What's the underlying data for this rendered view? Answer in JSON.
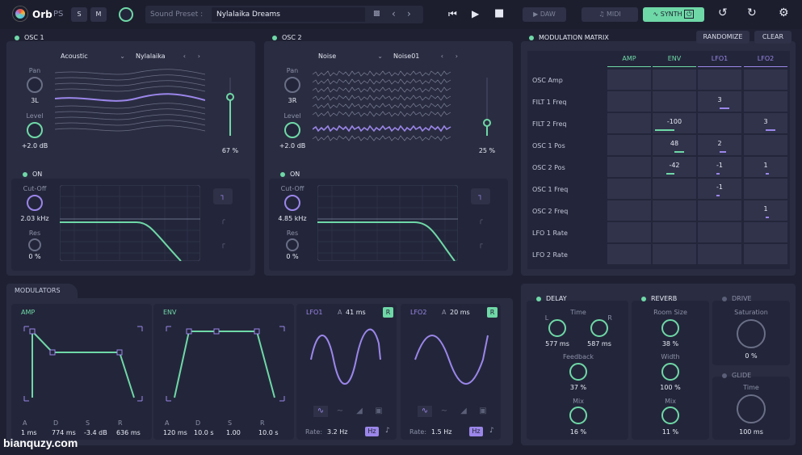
{
  "app": {
    "name": "Orb",
    "suffix": "PS",
    "s_label": "S",
    "m_label": "M"
  },
  "preset": {
    "label": "Sound Preset :",
    "name": "Nylalaika Dreams"
  },
  "modes": {
    "daw": "DAW",
    "midi": "MIDI",
    "synth": "SYNTH"
  },
  "osc1": {
    "title": "OSC 1",
    "type": "Acoustic",
    "wave": "Nylalaika",
    "pan_label": "Pan",
    "pan": "3L",
    "level_label": "Level",
    "level": "+2.0 dB",
    "mix": "67 %",
    "filter_on": "ON",
    "cutoff_label": "Cut-Off",
    "cutoff": "2.03 kHz",
    "res_label": "Res",
    "res": "0 %"
  },
  "osc2": {
    "title": "OSC 2",
    "type": "Noise",
    "wave": "Noise01",
    "pan_label": "Pan",
    "pan": "3R",
    "level_label": "Level",
    "level": "+2.0 dB",
    "mix": "25 %",
    "filter_on": "ON",
    "cutoff_label": "Cut-Off",
    "cutoff": "4.85 kHz",
    "res_label": "Res",
    "res": "0 %"
  },
  "matrix": {
    "title": "MODULATION MATRIX",
    "randomize": "RANDOMIZE",
    "clear": "CLEAR",
    "columns": [
      "AMP",
      "ENV",
      "LFO1",
      "LFO2"
    ],
    "rows": [
      {
        "label": "OSC Amp",
        "cells": [
          "",
          "",
          "",
          ""
        ]
      },
      {
        "label": "FILT 1 Freq",
        "cells": [
          "",
          "",
          "3",
          ""
        ]
      },
      {
        "label": "FILT 2 Freq",
        "cells": [
          "",
          "-100",
          "",
          "3"
        ]
      },
      {
        "label": "OSC 1 Pos",
        "cells": [
          "",
          "48",
          "2",
          ""
        ]
      },
      {
        "label": "OSC 2 Pos",
        "cells": [
          "",
          "-42",
          "-1",
          "1"
        ]
      },
      {
        "label": "OSC 1 Freq",
        "cells": [
          "",
          "",
          "-1",
          ""
        ]
      },
      {
        "label": "OSC 2 Freq",
        "cells": [
          "",
          "",
          "",
          "1"
        ]
      },
      {
        "label": "LFO 1 Rate",
        "cells": [
          "",
          "",
          "",
          ""
        ]
      },
      {
        "label": "LFO 2 Rate",
        "cells": [
          "",
          "",
          "",
          ""
        ]
      }
    ]
  },
  "modulators": {
    "tab": "MODULATORS",
    "amp": {
      "title": "AMP",
      "labels": [
        "A",
        "D",
        "S",
        "R"
      ],
      "values": [
        "1 ms",
        "774 ms",
        "-3.4 dB",
        "636 ms"
      ]
    },
    "env": {
      "title": "ENV",
      "labels": [
        "A",
        "D",
        "S",
        "R"
      ],
      "values": [
        "120 ms",
        "10.0 s",
        "1.00",
        "10.0 s"
      ]
    },
    "lfo1": {
      "title": "LFO1",
      "a_label": "A",
      "a": "41 ms",
      "r": "R",
      "rate_label": "Rate:",
      "rate": "3.2 Hz",
      "hz": "Hz"
    },
    "lfo2": {
      "title": "LFO2",
      "a_label": "A",
      "a": "20 ms",
      "r": "R",
      "rate_label": "Rate:",
      "rate": "1.5 Hz",
      "hz": "Hz"
    }
  },
  "delay": {
    "title": "DELAY",
    "time_label": "Time",
    "l": "L",
    "r": "R",
    "time_l": "577 ms",
    "time_r": "587 ms",
    "feedback_label": "Feedback",
    "feedback": "37 %",
    "mix_label": "Mix",
    "mix": "16 %"
  },
  "reverb": {
    "title": "REVERB",
    "room_label": "Room Size",
    "room": "38 %",
    "width_label": "Width",
    "width": "100 %",
    "mix_label": "Mix",
    "mix": "11 %"
  },
  "drive": {
    "title": "DRIVE",
    "sat_label": "Saturation",
    "sat": "0 %"
  },
  "glide": {
    "title": "GLIDE",
    "time_label": "Time",
    "time": "100 ms"
  },
  "watermark": "bianquzy.com"
}
